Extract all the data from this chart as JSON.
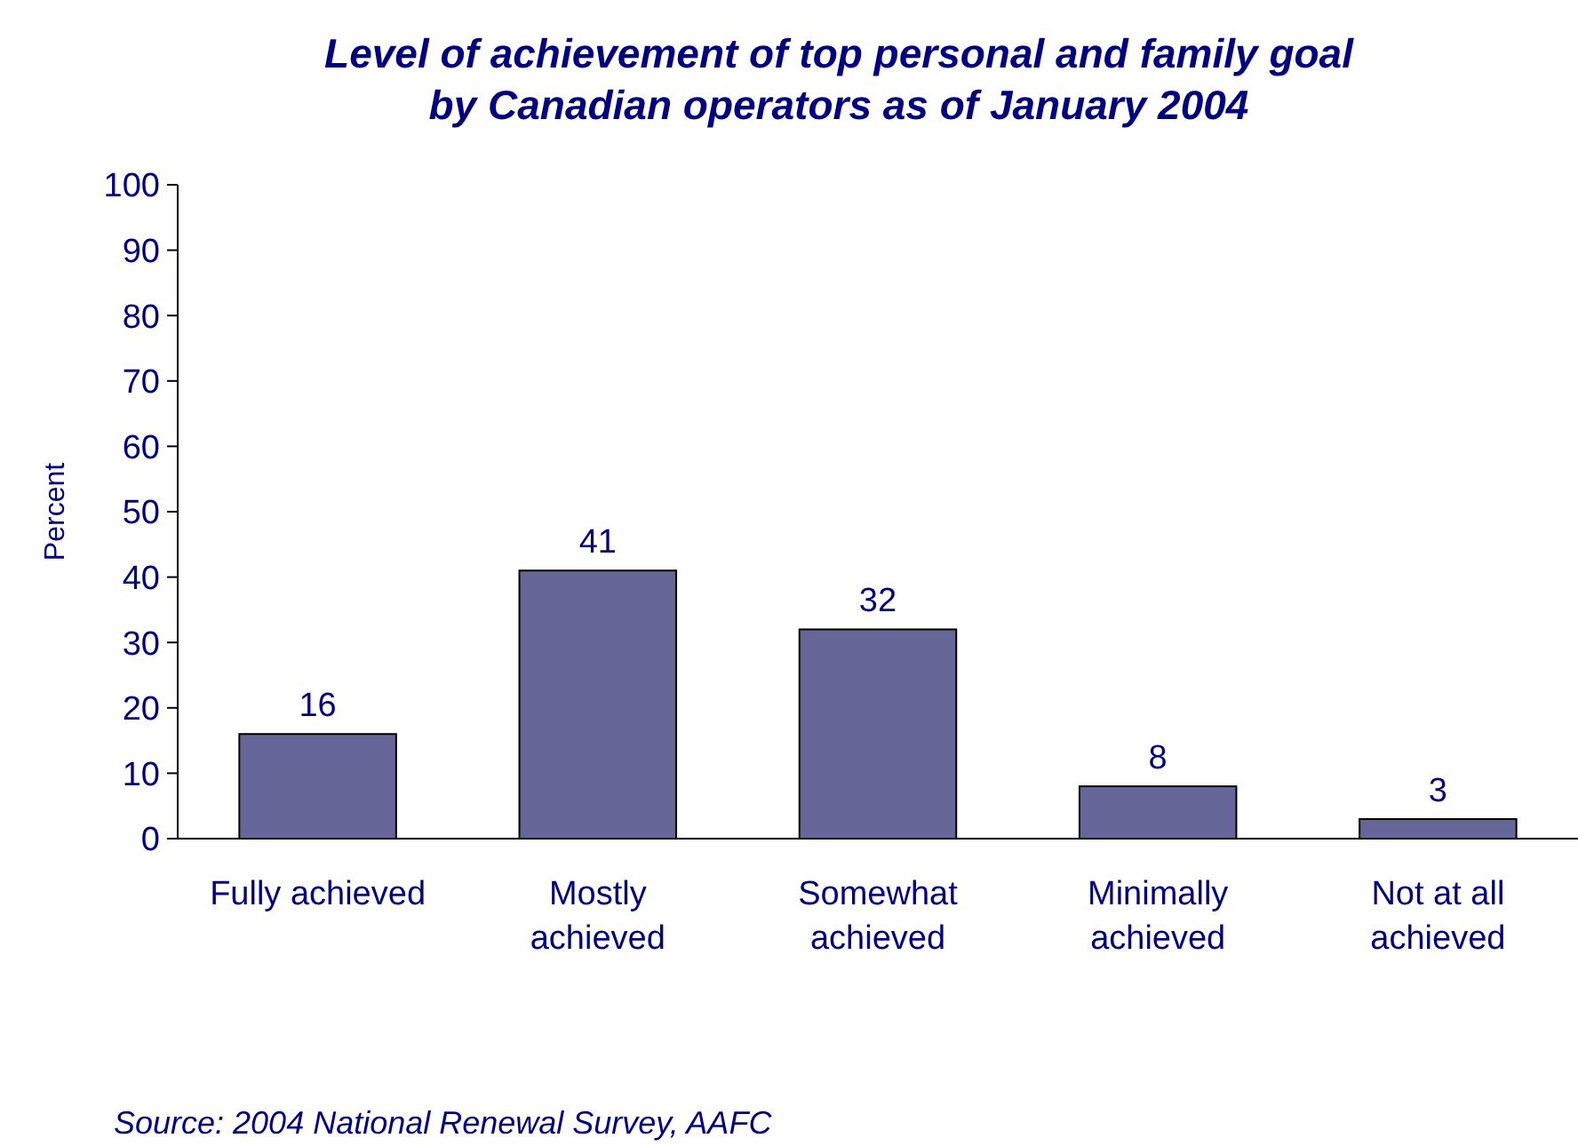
{
  "chart_data": {
    "type": "bar",
    "title": "Level of achievement of top personal and family goal\nby Canadian operators as of January 2004",
    "ylabel": "Percent",
    "categories": [
      "Fully achieved",
      "Mostly\nachieved",
      "Somewhat\nachieved",
      "Minimally\nachieved",
      "Not at all\nachieved"
    ],
    "values": [
      16,
      41,
      32,
      8,
      3
    ],
    "color": "#666699",
    "data_labels": true,
    "grid": false,
    "ylim": [
      0,
      100
    ],
    "yticks": [
      0,
      10,
      20,
      30,
      40,
      50,
      60,
      70,
      80,
      90,
      100
    ],
    "annotations": [
      "Source: 2004 National Renewal Survey, AAFC"
    ]
  }
}
